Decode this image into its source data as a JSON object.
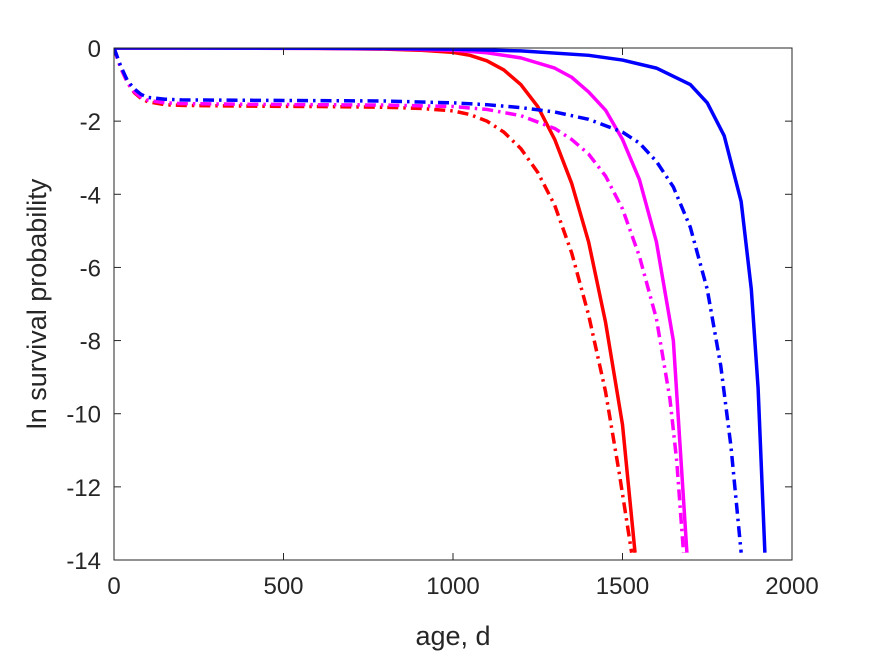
{
  "chart_data": {
    "type": "line",
    "title": "",
    "xlabel": "age, d",
    "ylabel": "ln survival probability",
    "xlim": [
      0,
      2000
    ],
    "ylim": [
      -14,
      0
    ],
    "xticks": [
      0,
      500,
      1000,
      1500,
      2000
    ],
    "yticks": [
      0,
      -2,
      -4,
      -6,
      -8,
      -10,
      -12,
      -14
    ],
    "grid": false,
    "legend": "none",
    "series": [
      {
        "color": "#ff0000",
        "style": "solid",
        "points": [
          [
            0,
            0
          ],
          [
            200,
            0
          ],
          [
            400,
            -0.005
          ],
          [
            600,
            -0.01
          ],
          [
            800,
            -0.03
          ],
          [
            900,
            -0.06
          ],
          [
            1000,
            -0.12
          ],
          [
            1050,
            -0.2
          ],
          [
            1100,
            -0.35
          ],
          [
            1150,
            -0.6
          ],
          [
            1200,
            -1.0
          ],
          [
            1250,
            -1.6
          ],
          [
            1300,
            -2.5
          ],
          [
            1350,
            -3.7
          ],
          [
            1400,
            -5.3
          ],
          [
            1450,
            -7.5
          ],
          [
            1500,
            -10.3
          ],
          [
            1537,
            -13.8
          ]
        ]
      },
      {
        "color": "#ff00ff",
        "style": "solid",
        "points": [
          [
            0,
            0
          ],
          [
            200,
            0
          ],
          [
            400,
            -0.005
          ],
          [
            600,
            -0.01
          ],
          [
            800,
            -0.02
          ],
          [
            1000,
            -0.06
          ],
          [
            1100,
            -0.13
          ],
          [
            1200,
            -0.27
          ],
          [
            1300,
            -0.55
          ],
          [
            1350,
            -0.8
          ],
          [
            1400,
            -1.2
          ],
          [
            1450,
            -1.7
          ],
          [
            1500,
            -2.5
          ],
          [
            1550,
            -3.6
          ],
          [
            1600,
            -5.3
          ],
          [
            1650,
            -8.0
          ],
          [
            1690,
            -13.8
          ]
        ]
      },
      {
        "color": "#0000ff",
        "style": "solid",
        "points": [
          [
            0,
            0
          ],
          [
            200,
            0
          ],
          [
            400,
            -0.003
          ],
          [
            600,
            -0.008
          ],
          [
            800,
            -0.015
          ],
          [
            1000,
            -0.03
          ],
          [
            1200,
            -0.08
          ],
          [
            1400,
            -0.2
          ],
          [
            1500,
            -0.33
          ],
          [
            1600,
            -0.55
          ],
          [
            1700,
            -1.0
          ],
          [
            1750,
            -1.5
          ],
          [
            1800,
            -2.4
          ],
          [
            1850,
            -4.2
          ],
          [
            1880,
            -6.6
          ],
          [
            1900,
            -9.3
          ],
          [
            1920,
            -13.8
          ]
        ]
      },
      {
        "color": "#ff0000",
        "style": "dashdot",
        "points": [
          [
            0,
            0
          ],
          [
            20,
            -0.55
          ],
          [
            40,
            -0.95
          ],
          [
            60,
            -1.22
          ],
          [
            80,
            -1.38
          ],
          [
            100,
            -1.47
          ],
          [
            150,
            -1.55
          ],
          [
            200,
            -1.57
          ],
          [
            400,
            -1.59
          ],
          [
            600,
            -1.6
          ],
          [
            800,
            -1.62
          ],
          [
            900,
            -1.65
          ],
          [
            1000,
            -1.72
          ],
          [
            1050,
            -1.82
          ],
          [
            1100,
            -2.0
          ],
          [
            1150,
            -2.3
          ],
          [
            1200,
            -2.75
          ],
          [
            1250,
            -3.4
          ],
          [
            1300,
            -4.3
          ],
          [
            1350,
            -5.6
          ],
          [
            1400,
            -7.3
          ],
          [
            1450,
            -9.4
          ],
          [
            1490,
            -11.6
          ],
          [
            1527,
            -13.8
          ]
        ]
      },
      {
        "color": "#ff00ff",
        "style": "dashdot",
        "points": [
          [
            0,
            0
          ],
          [
            20,
            -0.55
          ],
          [
            40,
            -0.95
          ],
          [
            60,
            -1.2
          ],
          [
            80,
            -1.35
          ],
          [
            100,
            -1.43
          ],
          [
            150,
            -1.5
          ],
          [
            200,
            -1.52
          ],
          [
            400,
            -1.54
          ],
          [
            600,
            -1.55
          ],
          [
            800,
            -1.56
          ],
          [
            1000,
            -1.6
          ],
          [
            1100,
            -1.68
          ],
          [
            1200,
            -1.85
          ],
          [
            1300,
            -2.2
          ],
          [
            1350,
            -2.5
          ],
          [
            1400,
            -2.9
          ],
          [
            1450,
            -3.5
          ],
          [
            1500,
            -4.4
          ],
          [
            1550,
            -5.7
          ],
          [
            1600,
            -7.4
          ],
          [
            1640,
            -9.6
          ],
          [
            1660,
            -11.3
          ],
          [
            1680,
            -13.8
          ]
        ]
      },
      {
        "color": "#0000ff",
        "style": "dashdot",
        "points": [
          [
            0,
            0
          ],
          [
            20,
            -0.5
          ],
          [
            40,
            -0.9
          ],
          [
            60,
            -1.12
          ],
          [
            80,
            -1.27
          ],
          [
            100,
            -1.35
          ],
          [
            150,
            -1.4
          ],
          [
            200,
            -1.42
          ],
          [
            400,
            -1.43
          ],
          [
            600,
            -1.44
          ],
          [
            800,
            -1.45
          ],
          [
            1000,
            -1.5
          ],
          [
            1100,
            -1.55
          ],
          [
            1200,
            -1.63
          ],
          [
            1300,
            -1.75
          ],
          [
            1400,
            -1.95
          ],
          [
            1500,
            -2.3
          ],
          [
            1550,
            -2.6
          ],
          [
            1600,
            -3.1
          ],
          [
            1650,
            -3.8
          ],
          [
            1700,
            -4.9
          ],
          [
            1750,
            -6.6
          ],
          [
            1790,
            -8.7
          ],
          [
            1820,
            -10.9
          ],
          [
            1850,
            -13.8
          ]
        ]
      }
    ]
  }
}
